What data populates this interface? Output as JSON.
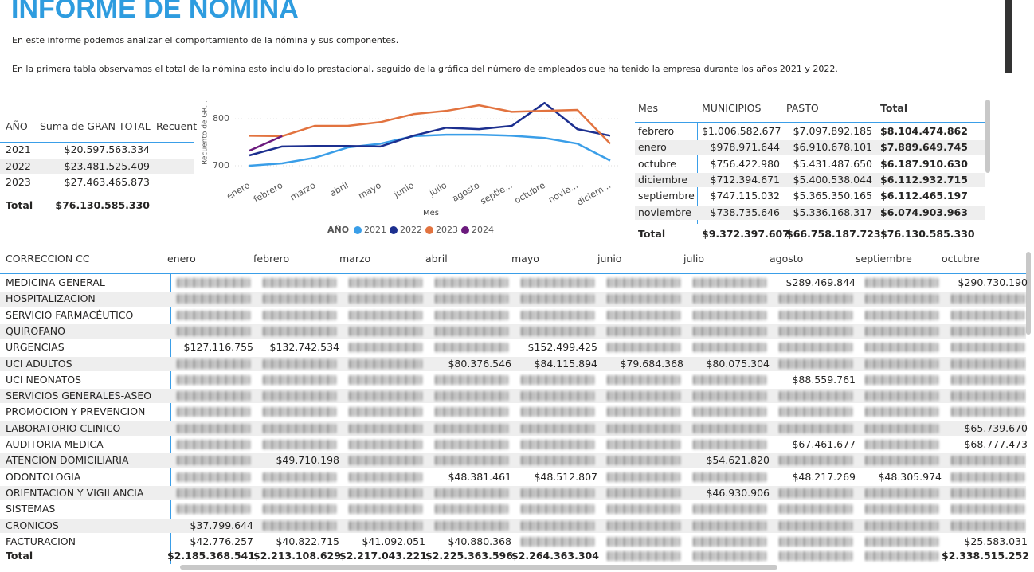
{
  "header": {
    "title": "INFORME DE NOMINA",
    "paragraphs": [
      "En este informe podemos analizar el comportamiento de la nómina y sus componentes.",
      "En la primera tabla observamos el total de la nómina esto incluido lo prestacional, seguido de la gráfica del número de empleados que ha tenido la empresa durante los años 2021 y 2022."
    ]
  },
  "year_table": {
    "columns": [
      "AÑO",
      "Suma de GRAN TOTAL",
      "Recuent"
    ],
    "rows": [
      [
        "2021",
        "$20.597.563.334"
      ],
      [
        "2022",
        "$23.481.525.409"
      ],
      [
        "2023",
        "$27.463.465.873"
      ]
    ],
    "total": [
      "Total",
      "$76.130.585.330"
    ]
  },
  "chart_data": {
    "type": "line",
    "y_label": "Recuento de GR...",
    "x_label": "Mes",
    "legend_title": "AÑO",
    "categories": [
      "enero",
      "febrero",
      "marzo",
      "abril",
      "mayo",
      "junio",
      "julio",
      "agosto",
      "septie...",
      "octubre",
      "novie...",
      "diciem..."
    ],
    "series": [
      {
        "name": "2021",
        "color": "#3a9ee8",
        "values": [
          700,
          705,
          717,
          739,
          747,
          763,
          766,
          766,
          764,
          759,
          747,
          711
        ]
      },
      {
        "name": "2022",
        "color": "#1c2f8f",
        "values": [
          722,
          741,
          742,
          742,
          741,
          764,
          781,
          778,
          785,
          834,
          778,
          764
        ]
      },
      {
        "name": "2023",
        "color": "#e2733f",
        "values": [
          764,
          763,
          785,
          785,
          793,
          810,
          817,
          829,
          815,
          817,
          819,
          747
        ]
      },
      {
        "name": "2024",
        "color": "#6b1a7d",
        "values": [
          732,
          763,
          null,
          null,
          null,
          null,
          null,
          null,
          null,
          null,
          null,
          null
        ]
      }
    ],
    "ylim": [
      671,
      836
    ],
    "yticks": [
      700,
      800
    ],
    "grid": true
  },
  "month_table": {
    "columns": [
      "Mes",
      "MUNICIPIOS",
      "PASTO",
      "Total"
    ],
    "rows": [
      [
        "febrero",
        "$1.006.582.677",
        "$7.097.892.185",
        "$8.104.474.862"
      ],
      [
        "enero",
        "$978.971.644",
        "$6.910.678.101",
        "$7.889.649.745"
      ],
      [
        "octubre",
        "$756.422.980",
        "$5.431.487.650",
        "$6.187.910.630"
      ],
      [
        "diciembre",
        "$712.394.671",
        "$5.400.538.044",
        "$6.112.932.715"
      ],
      [
        "septiembre",
        "$747.115.032",
        "$5.365.350.165",
        "$6.112.465.197"
      ],
      [
        "noviembre",
        "$738.735.646",
        "$5.336.168.317",
        "$6.074.903.963"
      ]
    ],
    "total": [
      "Total",
      "$9.372.397.607",
      "$66.758.187.723",
      "$76.130.585.330"
    ]
  },
  "cost_table": {
    "columns": [
      "CORRECCION CC",
      "enero",
      "febrero",
      "marzo",
      "abril",
      "mayo",
      "junio",
      "julio",
      "agosto",
      "septiembre",
      "octubre"
    ],
    "rows": [
      [
        "MEDICINA GENERAL",
        null,
        null,
        null,
        null,
        null,
        null,
        null,
        "$289.469.844",
        null,
        "$290.730.190"
      ],
      [
        "HOSPITALIZACION",
        null,
        null,
        null,
        null,
        null,
        null,
        null,
        null,
        null,
        null
      ],
      [
        "SERVICIO FARMACÉUTICO",
        null,
        null,
        null,
        null,
        null,
        null,
        null,
        null,
        null,
        null
      ],
      [
        "QUIROFANO",
        null,
        null,
        null,
        null,
        null,
        null,
        null,
        null,
        null,
        null
      ],
      [
        "URGENCIAS",
        "$127.116.755",
        "$132.742.534",
        null,
        null,
        "$152.499.425",
        null,
        null,
        null,
        null,
        null
      ],
      [
        "UCI ADULTOS",
        null,
        null,
        null,
        "$80.376.546",
        "$84.115.894",
        "$79.684.368",
        "$80.075.304",
        null,
        null,
        null
      ],
      [
        "UCI NEONATOS",
        null,
        null,
        null,
        null,
        null,
        null,
        null,
        "$88.559.761",
        null,
        null
      ],
      [
        "SERVICIOS GENERALES-ASEO",
        null,
        null,
        null,
        null,
        null,
        null,
        null,
        null,
        null,
        null
      ],
      [
        "PROMOCION Y PREVENCION",
        null,
        null,
        null,
        null,
        null,
        null,
        null,
        null,
        null,
        null
      ],
      [
        "LABORATORIO CLINICO",
        null,
        null,
        null,
        null,
        null,
        null,
        null,
        null,
        null,
        "$65.739.670"
      ],
      [
        "AUDITORIA MEDICA",
        null,
        null,
        null,
        null,
        null,
        null,
        null,
        "$67.461.677",
        null,
        "$68.777.473"
      ],
      [
        "ATENCION DOMICILIARIA",
        null,
        "$49.710.198",
        null,
        null,
        null,
        null,
        "$54.621.820",
        null,
        null,
        null
      ],
      [
        "ODONTOLOGIA",
        null,
        null,
        null,
        "$48.381.461",
        "$48.512.807",
        null,
        null,
        "$48.217.269",
        "$48.305.974",
        null
      ],
      [
        "ORIENTACION Y VIGILANCIA",
        null,
        null,
        null,
        null,
        null,
        null,
        "$46.930.906",
        null,
        null,
        null
      ],
      [
        "SISTEMAS",
        null,
        null,
        null,
        null,
        null,
        null,
        null,
        null,
        null,
        null
      ],
      [
        "CRONICOS",
        "$37.799.644",
        null,
        null,
        null,
        null,
        null,
        null,
        null,
        null,
        null
      ],
      [
        "FACTURACION",
        "$42.776.257",
        "$40.822.715",
        "$41.092.051",
        "$40.880.368",
        null,
        null,
        null,
        null,
        null,
        "$25.583.031"
      ]
    ],
    "total": [
      "Total",
      "$2.185.368.541",
      "$2.213.108.629",
      "$2.217.043.221",
      "$2.225.363.596",
      "$2.264.363.304",
      null,
      null,
      null,
      null,
      "$2.338.515.252"
    ]
  }
}
